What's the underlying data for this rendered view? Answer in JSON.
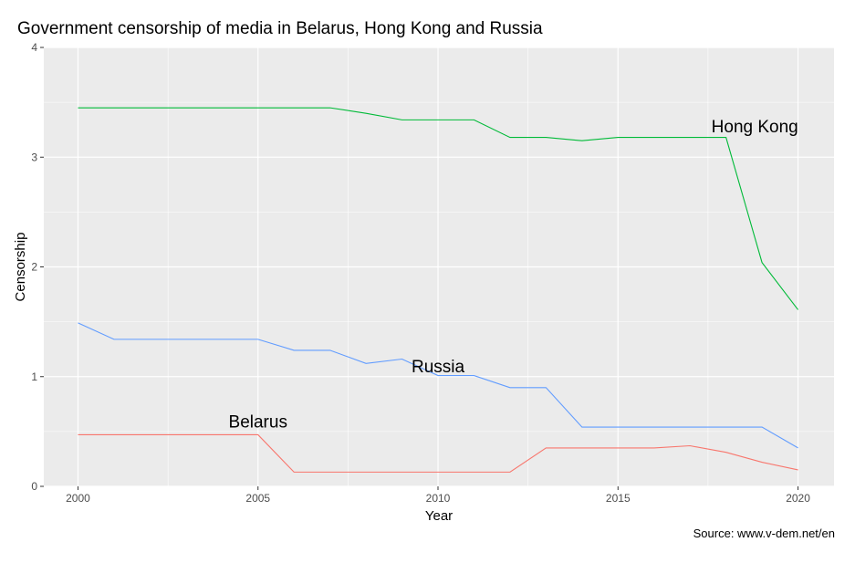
{
  "chart_data": {
    "type": "line",
    "title": "Government censorship of media in Belarus, Hong Kong and Russia",
    "xlabel": "Year",
    "ylabel": "Censorship",
    "caption": "Source: www.v-dem.net/en",
    "xlim": [
      1999.05,
      2021.0
    ],
    "ylim": [
      0,
      4
    ],
    "x_ticks": [
      2000,
      2005,
      2010,
      2015,
      2020
    ],
    "y_ticks": [
      0,
      1,
      2,
      3,
      4
    ],
    "grid": true,
    "background": "#ebebeb",
    "x": [
      2000,
      2001,
      2002,
      2003,
      2004,
      2005,
      2006,
      2007,
      2008,
      2009,
      2010,
      2011,
      2012,
      2013,
      2014,
      2015,
      2016,
      2017,
      2018,
      2019,
      2020
    ],
    "series": [
      {
        "name": "Belarus",
        "color": "#f8766d",
        "label_at": [
          2005,
          0.58
        ],
        "values": [
          0.47,
          0.47,
          0.47,
          0.47,
          0.47,
          0.47,
          0.13,
          0.13,
          0.13,
          0.13,
          0.13,
          0.13,
          0.13,
          0.35,
          0.35,
          0.35,
          0.35,
          0.37,
          0.31,
          0.22,
          0.15
        ]
      },
      {
        "name": "Hong Kong",
        "color": "#00ba38",
        "label_at": [
          2018.8,
          3.27
        ],
        "values": [
          3.45,
          3.45,
          3.45,
          3.45,
          3.45,
          3.45,
          3.45,
          3.45,
          3.4,
          3.34,
          3.34,
          3.34,
          3.18,
          3.18,
          3.15,
          3.18,
          3.18,
          3.18,
          3.18,
          2.04,
          1.61
        ]
      },
      {
        "name": "Russia",
        "color": "#619cff",
        "label_at": [
          2010,
          1.08
        ],
        "values": [
          1.49,
          1.34,
          1.34,
          1.34,
          1.34,
          1.34,
          1.24,
          1.24,
          1.12,
          1.16,
          1.01,
          1.01,
          0.9,
          0.9,
          0.54,
          0.54,
          0.54,
          0.54,
          0.54,
          0.54,
          0.35
        ]
      }
    ]
  }
}
